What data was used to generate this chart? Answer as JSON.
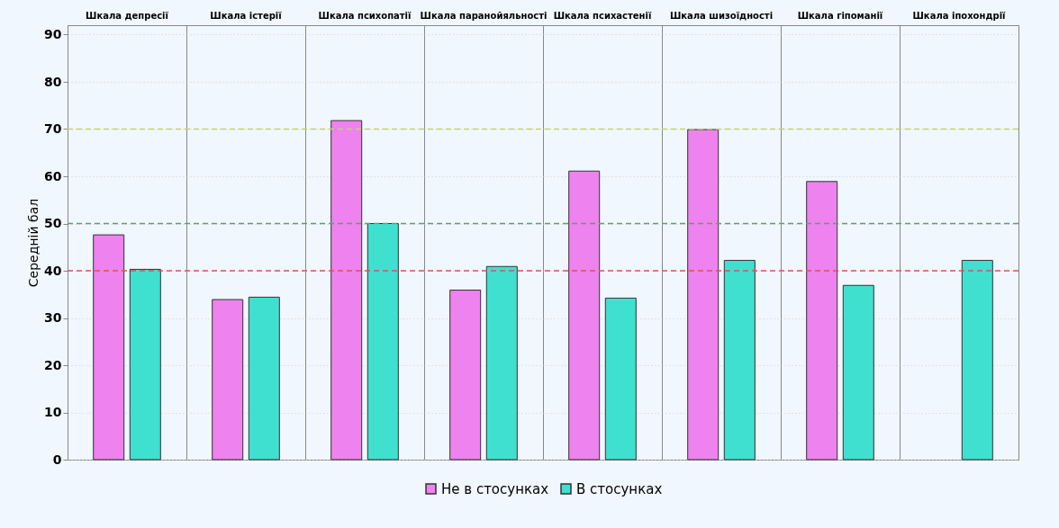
{
  "chart_data": {
    "type": "bar",
    "ylabel": "Середній бал",
    "categories": [
      "Шкала депресії",
      "Шкала істерії",
      "Шкала психопатії",
      "Шкала паранойяльності",
      "Шкала психастенії",
      "Шкала шизоїдності",
      "Шкала гіпоманії",
      "Шкала іпохондрії"
    ],
    "series": [
      {
        "name": "Не в стосунках",
        "color": "#ee82ee",
        "values": [
          47.6,
          33.9,
          71.8,
          35.9,
          61.1,
          69.9,
          58.9,
          null
        ]
      },
      {
        "name": "В стосунках",
        "color": "#40e0d0",
        "values": [
          40.3,
          34.4,
          50.0,
          40.9,
          34.2,
          42.2,
          36.9,
          42.2
        ]
      }
    ],
    "ylim": [
      0,
      92
    ],
    "yticks": [
      0,
      10,
      20,
      30,
      40,
      50,
      60,
      70,
      80,
      90
    ],
    "grid": "y",
    "legend": "bottom",
    "ref_lines": [
      {
        "axis": "y",
        "value": 40,
        "color": "#e05050",
        "line_style": "dashed"
      },
      {
        "axis": "y",
        "value": 50,
        "color": "#6a9a6a",
        "line_style": "dashed"
      },
      {
        "axis": "y",
        "value": 70,
        "color": "#c8d070",
        "line_style": "dashed"
      }
    ]
  }
}
